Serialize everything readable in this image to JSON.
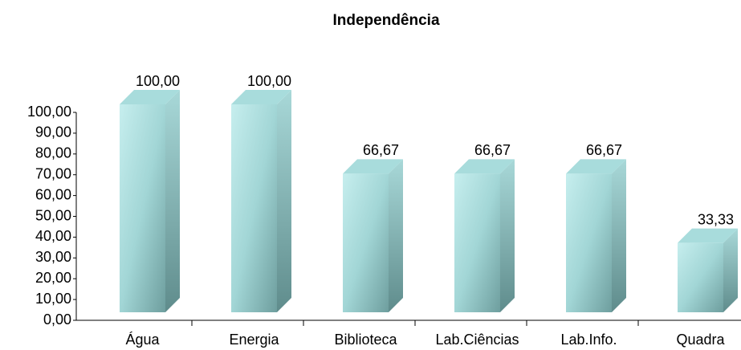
{
  "chart_data": {
    "type": "bar3d",
    "title": "Independência",
    "categories": [
      "Água",
      "Energia",
      "Biblioteca",
      "Lab.Ciências",
      "Lab.Info.",
      "Quadra"
    ],
    "values": [
      100,
      100,
      66.67,
      66.67,
      66.67,
      33.33
    ],
    "value_labels": [
      "100,00",
      "100,00",
      "66,67",
      "66,67",
      "66,67",
      "33,33"
    ],
    "color": "#a8dcdc",
    "ylim": [
      0,
      100
    ],
    "yticks": [
      {
        "value": 0,
        "label": "0,00"
      },
      {
        "value": 10,
        "label": "10,00"
      },
      {
        "value": 20,
        "label": "20,00"
      },
      {
        "value": 30,
        "label": "30,00"
      },
      {
        "value": 40,
        "label": "40,00"
      },
      {
        "value": 50,
        "label": "50,00"
      },
      {
        "value": 60,
        "label": "60,00"
      },
      {
        "value": 70,
        "label": "70,00"
      },
      {
        "value": 80,
        "label": "80,00"
      },
      {
        "value": 90,
        "label": "90,00"
      },
      {
        "value": 100,
        "label": "100,00"
      }
    ]
  }
}
